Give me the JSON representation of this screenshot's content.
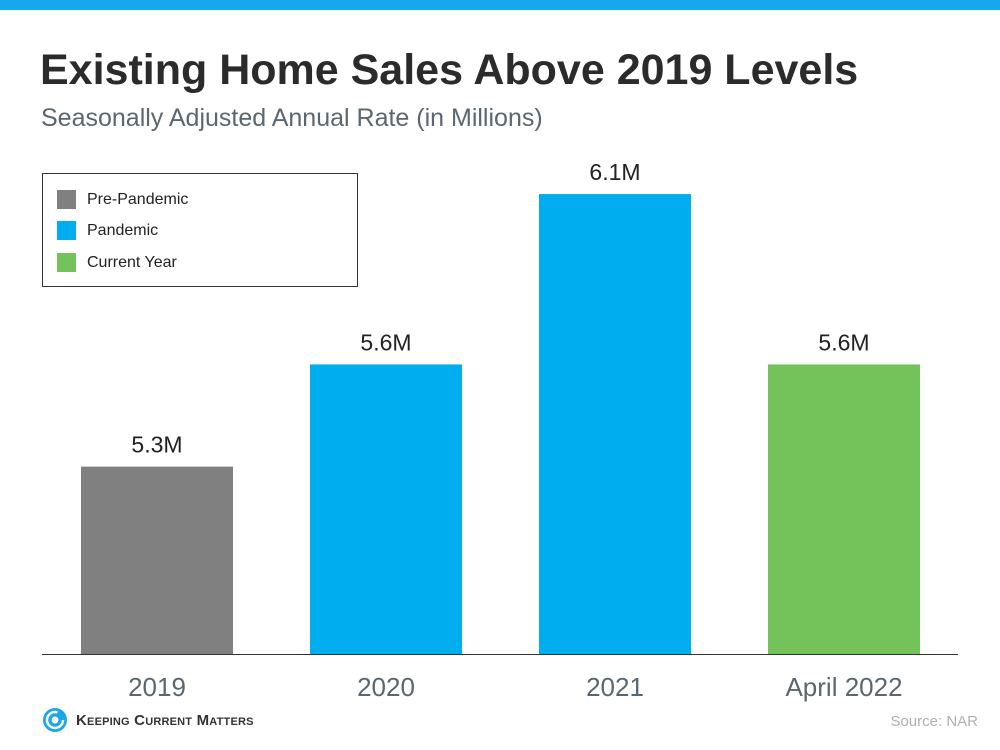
{
  "chart_data": {
    "type": "bar",
    "title": "Existing Home Sales Above 2019 Levels",
    "subtitle": "Seasonally Adjusted Annual Rate (in Millions)",
    "categories": [
      "2019",
      "2020",
      "2021",
      "April 2022"
    ],
    "values": [
      5.3,
      5.6,
      6.1,
      5.6
    ],
    "data_labels": [
      "5.3M",
      "5.6M",
      "6.1M",
      "5.6M"
    ],
    "series_group": [
      "Pre-Pandemic",
      "Pandemic",
      "Pandemic",
      "Current Year"
    ],
    "ylim": [
      4.75,
      6.2
    ],
    "xlabel": "",
    "ylabel": "",
    "grid": false,
    "legend": {
      "placement": "top-left",
      "entries": [
        {
          "label": "Pre-Pandemic",
          "color": "#808080"
        },
        {
          "label": "Pandemic",
          "color": "#00adee"
        },
        {
          "label": "Current Year",
          "color": "#74c35a"
        }
      ]
    }
  },
  "colors": {
    "Pre-Pandemic": "#808080",
    "Pandemic": "#00adee",
    "Current Year": "#74c35a",
    "accent_bar": "#14a9ec"
  },
  "footer": {
    "source": "Source: NAR",
    "logo_text": "Keeping Current Matters"
  }
}
